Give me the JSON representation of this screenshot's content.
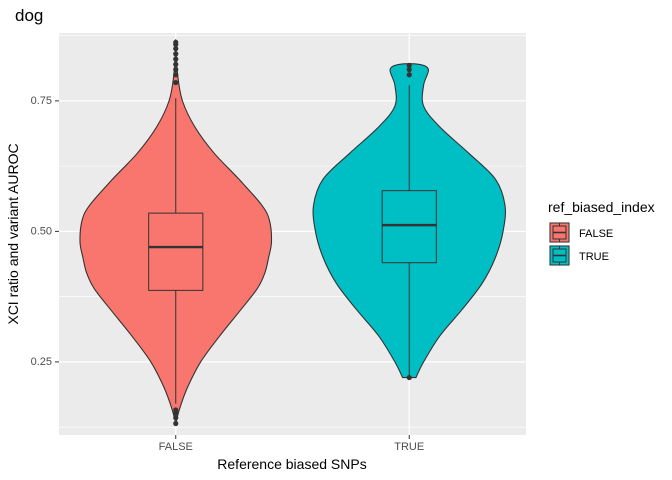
{
  "chart_data": {
    "type": "violin",
    "title": "dog",
    "xlabel": "Reference biased SNPs",
    "ylabel": "XCI ratio and variant AUROC",
    "categories": [
      "FALSE",
      "TRUE"
    ],
    "ylim": [
      0.11,
      0.88
    ],
    "yticks": [
      0.25,
      0.5,
      0.75
    ],
    "ytick_labels": [
      "0.25",
      "0.50",
      "0.75"
    ],
    "legend": {
      "title": "ref_biased_index",
      "position": "right",
      "entries": [
        {
          "label": "FALSE",
          "color": "#F8766D"
        },
        {
          "label": "TRUE",
          "color": "#00BFC4"
        }
      ]
    },
    "series": [
      {
        "name": "FALSE",
        "color": "#F8766D",
        "box": {
          "min": 0.17,
          "q1": 0.387,
          "median": 0.47,
          "q3": 0.535,
          "max": 0.755
        },
        "outliers": [
          0.132,
          0.143,
          0.152,
          0.158,
          0.785,
          0.8,
          0.81,
          0.82,
          0.83,
          0.84,
          0.85,
          0.858,
          0.862
        ],
        "density": [
          [
            0.132,
            0.0
          ],
          [
            0.16,
            0.04
          ],
          [
            0.2,
            0.12
          ],
          [
            0.25,
            0.26
          ],
          [
            0.3,
            0.46
          ],
          [
            0.35,
            0.68
          ],
          [
            0.39,
            0.85
          ],
          [
            0.42,
            0.93
          ],
          [
            0.45,
            0.97
          ],
          [
            0.48,
            1.0
          ],
          [
            0.52,
            0.98
          ],
          [
            0.55,
            0.9
          ],
          [
            0.6,
            0.66
          ],
          [
            0.65,
            0.4
          ],
          [
            0.7,
            0.2
          ],
          [
            0.75,
            0.07
          ],
          [
            0.8,
            0.02
          ],
          [
            0.86,
            0.0
          ]
        ]
      },
      {
        "name": "TRUE",
        "color": "#00BFC4",
        "box": {
          "min": 0.22,
          "q1": 0.44,
          "median": 0.512,
          "q3": 0.578,
          "max": 0.78
        },
        "outliers": [
          0.22,
          0.8,
          0.81,
          0.818
        ],
        "density": [
          [
            0.22,
            0.07
          ],
          [
            0.25,
            0.15
          ],
          [
            0.3,
            0.32
          ],
          [
            0.35,
            0.55
          ],
          [
            0.4,
            0.76
          ],
          [
            0.45,
            0.9
          ],
          [
            0.5,
            0.98
          ],
          [
            0.55,
            1.0
          ],
          [
            0.6,
            0.9
          ],
          [
            0.65,
            0.62
          ],
          [
            0.7,
            0.32
          ],
          [
            0.74,
            0.15
          ],
          [
            0.78,
            0.15
          ],
          [
            0.81,
            0.2
          ],
          [
            0.82,
            0.1
          ]
        ]
      }
    ]
  }
}
